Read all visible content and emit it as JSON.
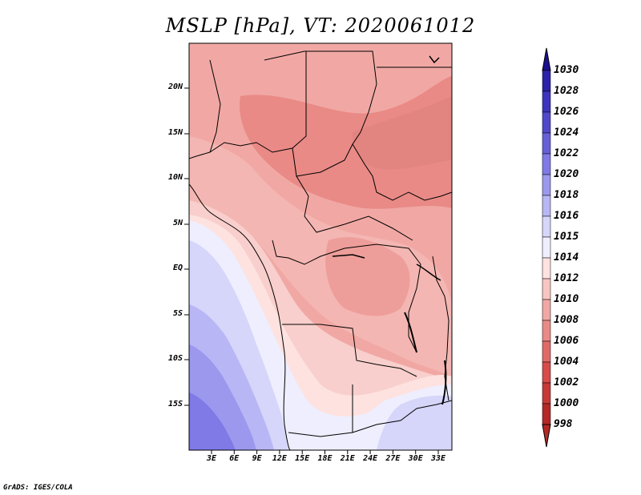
{
  "title": "MSLP [hPa], VT: 2020061012",
  "footer": "GrADS: IGES/COLA",
  "lat_labels": [
    "20N",
    "15N",
    "10N",
    "5N",
    "EQ",
    "5S",
    "10S",
    "15S"
  ],
  "lon_labels": [
    "3E",
    "6E",
    "9E",
    "12E",
    "15E",
    "18E",
    "21E",
    "24E",
    "27E",
    "30E",
    "33E"
  ],
  "colorbar": {
    "levels": [
      "1030",
      "1028",
      "1026",
      "1024",
      "1022",
      "1020",
      "1018",
      "1016",
      "1015",
      "1014",
      "1012",
      "1010",
      "1008",
      "1006",
      "1004",
      "1002",
      "1000",
      "998"
    ],
    "colors": [
      "#1a0f8c",
      "#2a22a8",
      "#3c34be",
      "#5048cc",
      "#6660d8",
      "#7f7ae6",
      "#9b98ee",
      "#b8b6f4",
      "#d6d5fa",
      "#eeeefe",
      "#fde2e0",
      "#f8c6c2",
      "#f1a8a4",
      "#e98a86",
      "#e06a66",
      "#d84b48",
      "#c63a36",
      "#b32a26",
      "#9e1a18"
    ],
    "top_color": "#1a0f8c",
    "bottom_color": "#b32a26"
  }
}
